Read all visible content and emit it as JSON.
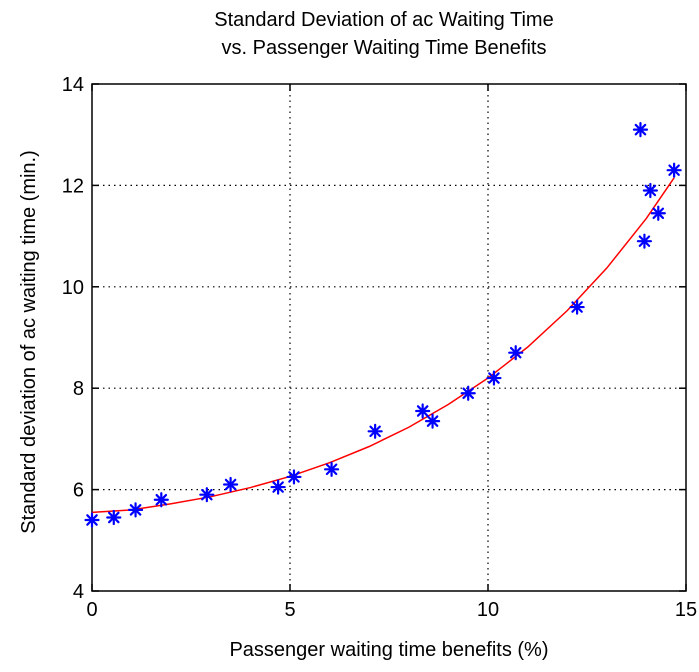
{
  "chart_data": {
    "type": "scatter",
    "title": "Standard Deviation of ac Waiting Time",
    "subtitle": "vs. Passenger Waiting Time Benefits",
    "xlabel": "Passenger waiting time benefits (%)",
    "ylabel": "Standard deviation of ac waiting time (min.)",
    "xlim": [
      0,
      15
    ],
    "ylim": [
      4,
      14
    ],
    "xticks": [
      0,
      5,
      10,
      15
    ],
    "xtick_labels": [
      "0",
      "5",
      "10",
      "15"
    ],
    "yticks": [
      4,
      6,
      8,
      10,
      12,
      14
    ],
    "ytick_labels": [
      "4",
      "6",
      "8",
      "10",
      "12",
      "14"
    ],
    "grid": true,
    "grid_style": "dotted",
    "series": [
      {
        "type": "scatter",
        "marker": "asterisk",
        "color": "#0000ff",
        "x": [
          0.0,
          0.55,
          1.1,
          1.75,
          2.9,
          3.5,
          4.7,
          5.1,
          6.05,
          7.15,
          8.35,
          8.6,
          9.5,
          10.15,
          10.7,
          12.25,
          13.85,
          13.95,
          14.1,
          14.3,
          14.7
        ],
        "y": [
          5.4,
          5.45,
          5.6,
          5.8,
          5.9,
          6.1,
          6.05,
          6.25,
          6.4,
          7.15,
          7.55,
          7.35,
          7.9,
          8.2,
          8.7,
          9.6,
          13.1,
          10.9,
          11.9,
          11.45,
          12.3
        ]
      },
      {
        "type": "line",
        "color": "#ff0000",
        "x": [
          0.0,
          1.0,
          2.0,
          3.0,
          4.0,
          5.0,
          6.0,
          7.0,
          8.0,
          9.0,
          10.0,
          11.0,
          12.0,
          13.0,
          14.0,
          14.7
        ],
        "y": [
          5.55,
          5.6,
          5.72,
          5.86,
          6.04,
          6.26,
          6.53,
          6.85,
          7.23,
          7.68,
          8.2,
          8.81,
          9.53,
          10.37,
          11.35,
          12.15
        ]
      }
    ]
  }
}
